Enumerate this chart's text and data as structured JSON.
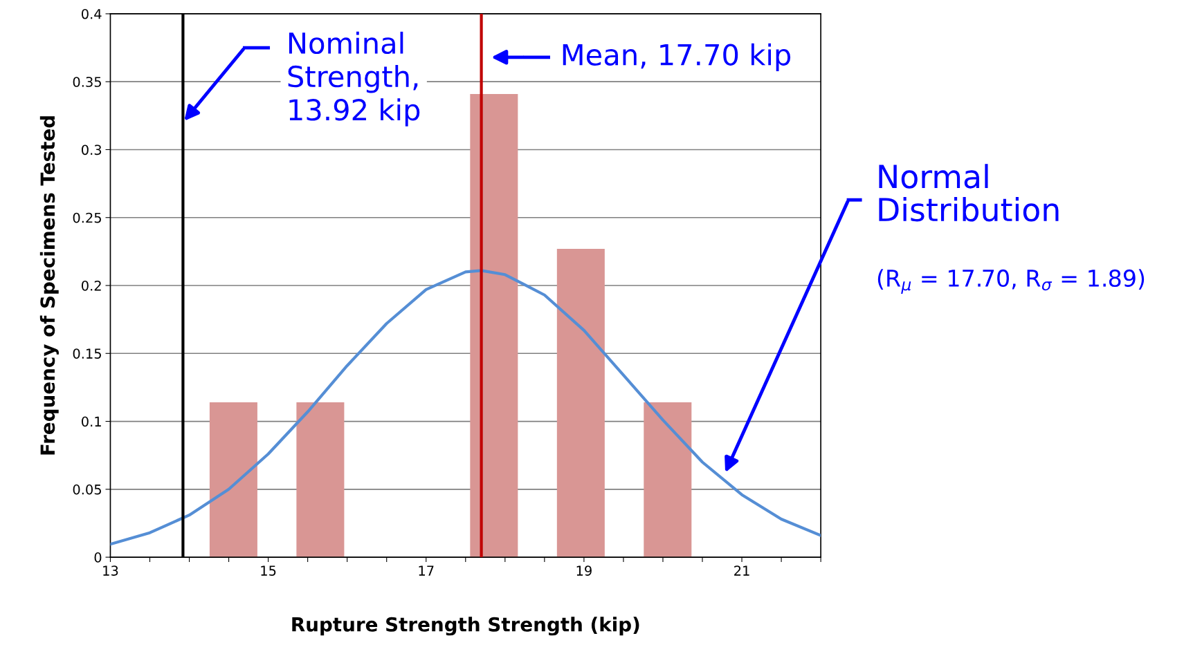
{
  "chart_data": {
    "type": "histogram",
    "xlabel": "Rupture Strength Strength (kip)",
    "ylabel": "Frequency of Specimens Tested",
    "bins": [
      14.01,
      15.11,
      16.21,
      17.31,
      18.41,
      19.51,
      20.61
    ],
    "values": [
      0.114,
      0.114,
      0,
      0.341,
      0.227,
      0.114
    ],
    "color": "#d99694",
    "series": [
      {
        "type": "line",
        "name": "Normal Distribution",
        "color": "#558ed5",
        "x": [
          13,
          13.5,
          14,
          14.5,
          15,
          15.5,
          16,
          16.5,
          17,
          17.5,
          17.7,
          18,
          18.5,
          19,
          19.5,
          20,
          20.5,
          21,
          21.5,
          22
        ],
        "values": [
          0.0096,
          0.018,
          0.031,
          0.05,
          0.076,
          0.107,
          0.141,
          0.172,
          0.197,
          0.21,
          0.211,
          0.208,
          0.193,
          0.167,
          0.134,
          0.101,
          0.07,
          0.046,
          0.028,
          0.016
        ]
      }
    ],
    "ref_lines": [
      {
        "axis": "x",
        "value": 13.92,
        "color": "#000000"
      },
      {
        "axis": "x",
        "value": 17.7,
        "label": "Mean, 17.70 kip",
        "color": "#c00000"
      }
    ],
    "annotations": [
      "Nominal\nStrength,\n13.92 kip",
      "(R$_{μ}$ = 17.70, R$_{σ}$ = 1.89)"
    ],
    "xlim": [
      13,
      22
    ],
    "xticks": [
      13,
      {
        "value": 13.5,
        "label": null
      },
      {
        "value": 14,
        "label": null
      },
      {
        "value": 14.5,
        "label": null
      },
      15,
      {
        "value": 15.5,
        "label": null
      },
      {
        "value": 16,
        "label": null
      },
      {
        "value": 16.5,
        "label": null
      },
      17,
      {
        "value": 17.5,
        "label": null
      },
      {
        "value": 18,
        "label": null
      },
      {
        "value": 18.5,
        "label": null
      },
      19,
      {
        "value": 19.5,
        "label": null
      },
      {
        "value": 20,
        "label": null
      },
      {
        "value": 20.5,
        "label": null
      },
      21,
      {
        "value": 21.5,
        "label": null
      },
      {
        "value": 22,
        "label": null
      }
    ],
    "ylim": [
      0,
      0.4
    ],
    "yticks": [
      0,
      0.05,
      0.1,
      0.15,
      0.2,
      0.25,
      0.3,
      0.35,
      0.4
    ],
    "grid": "y"
  }
}
